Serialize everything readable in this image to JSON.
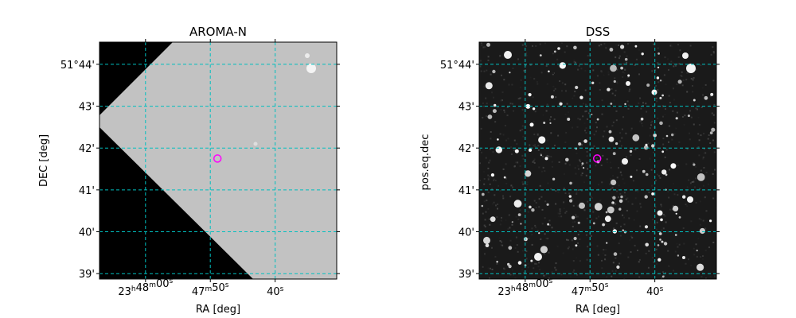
{
  "chart_data": [
    {
      "type": "sky-image",
      "title": "AROMA-N",
      "xlabel": "RA [deg]",
      "ylabel": "DEC [deg]",
      "grid": true,
      "grid_color": "#00bfbf",
      "xticks": [
        {
          "hms": "23h48m00s",
          "h": "23",
          "m": "48",
          "s": "00"
        },
        {
          "hms": "47m50s",
          "h": "",
          "m": "47",
          "s": "50"
        },
        {
          "hms": "40s",
          "h": "",
          "m": "",
          "s": "40"
        }
      ],
      "xtick_sec_values": [
        -4320,
        -4330,
        -4340
      ],
      "yticks": [
        "51°44'",
        "43'",
        "42'",
        "41'",
        "40'",
        "39'"
      ],
      "ytick_values": [
        44,
        43,
        42,
        41,
        40,
        39
      ],
      "ylim": [
        38.87,
        44.53
      ],
      "xlim_sec": [
        -4312.9,
        -4349.5
      ],
      "image_style": "gray-with-black-corners",
      "marker": {
        "ra_sec": -4331.1,
        "dec_min": 41.75,
        "color": "#ff00ff"
      }
    },
    {
      "type": "sky-image",
      "title": "DSS",
      "xlabel": "RA [deg]",
      "ylabel": "pos.eq.dec",
      "grid": true,
      "grid_color": "#00bfbf",
      "xticks": [
        {
          "hms": "23h48m00s",
          "h": "23",
          "m": "48",
          "s": "00"
        },
        {
          "hms": "47m50s",
          "h": "",
          "m": "47",
          "s": "50"
        },
        {
          "hms": "40s",
          "h": "",
          "m": "",
          "s": "40"
        }
      ],
      "xtick_sec_values": [
        -4320,
        -4330,
        -4340
      ],
      "yticks": [
        "51°44'",
        "43'",
        "42'",
        "41'",
        "40'",
        "39'"
      ],
      "ytick_values": [
        44,
        43,
        42,
        41,
        40,
        39
      ],
      "ylim": [
        38.87,
        44.53
      ],
      "xlim_sec": [
        -4312.9,
        -4349.5
      ],
      "image_style": "dark-starfield",
      "marker": {
        "ra_sec": -4331.1,
        "dec_min": 41.75,
        "color": "#ff00ff"
      }
    }
  ]
}
